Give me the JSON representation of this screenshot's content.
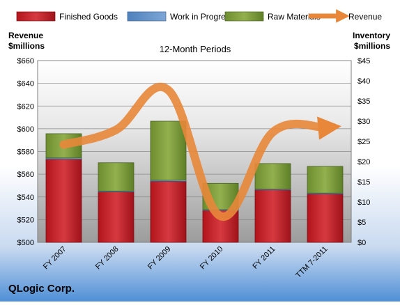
{
  "chart_data": {
    "type": "bar",
    "title": "12-Month Periods",
    "company": "QLogic Corp.",
    "left_axis_label": [
      "Revenue",
      "$millions"
    ],
    "right_axis_label": [
      "Inventory",
      "$millions"
    ],
    "categories": [
      "FY 2007",
      "FY 2008",
      "FY 2009",
      "FY 2010",
      "FY 2011",
      "TTM 7-2011"
    ],
    "left_ylim": [
      500,
      660
    ],
    "left_ticks": [
      "$500",
      "$520",
      "$540",
      "$560",
      "$580",
      "$600",
      "$620",
      "$640",
      "$660"
    ],
    "right_ylim": [
      0,
      45
    ],
    "right_ticks": [
      "$0",
      "$5",
      "$10",
      "$15",
      "$20",
      "$25",
      "$30",
      "$35",
      "$40",
      "$45"
    ],
    "legend_position": "top",
    "series": [
      {
        "name": "Finished Goods",
        "axis": "right",
        "kind": "stacked-bar",
        "color": "#c0272d",
        "values": [
          20.6,
          12.5,
          15.1,
          7.9,
          13.0,
          12.0
        ]
      },
      {
        "name": "Work in Progress",
        "axis": "right",
        "kind": "stacked-bar",
        "color": "#4f81bd",
        "values": [
          0.3,
          0.2,
          0.3,
          0.2,
          0.2,
          0.2
        ]
      },
      {
        "name": "Raw Materials",
        "axis": "right",
        "kind": "stacked-bar",
        "color": "#7a9a3a",
        "values": [
          6.0,
          7.0,
          14.6,
          6.5,
          6.3,
          6.6
        ]
      },
      {
        "name": "Revenue",
        "axis": "left",
        "kind": "line",
        "color": "#e8873a",
        "values": [
          586,
          599,
          634,
          523,
          597,
          601
        ]
      }
    ]
  }
}
